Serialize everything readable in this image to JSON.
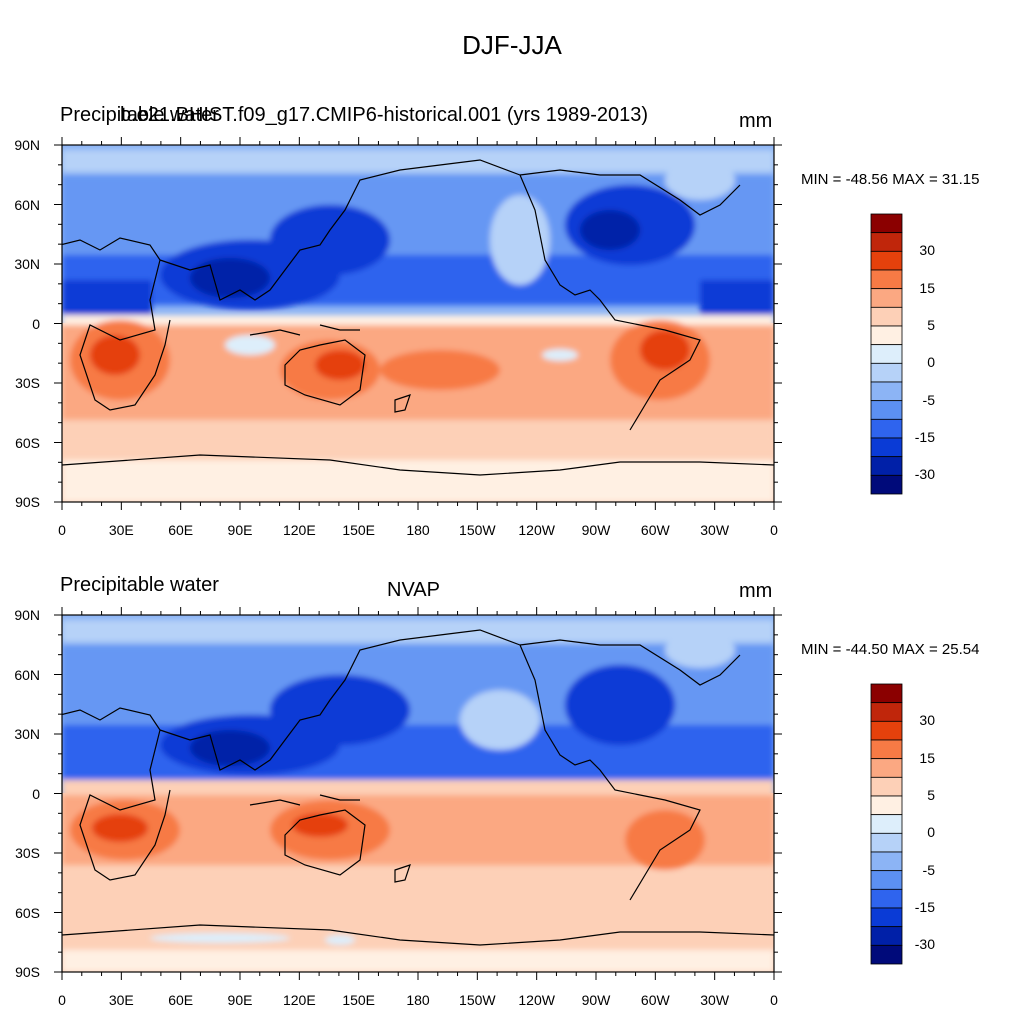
{
  "figure": {
    "title": "DJF-JJA"
  },
  "panels": [
    {
      "left_label": "Precipitable water",
      "center_label": "b.e21.BHIST.f09_g17.CMIP6-historical.001 (yrs 1989-2013)",
      "units": "mm",
      "stats_text": "MIN = -48.56 MAX =  31.15",
      "min": -48.56,
      "max": 31.15
    },
    {
      "left_label": "Precipitable water",
      "center_label": "NVAP",
      "units": "mm",
      "stats_text": "MIN = -44.50 MAX =  25.54",
      "min": -44.5,
      "max": 25.54
    }
  ],
  "axes": {
    "lon_tick_labels": [
      "0",
      "30E",
      "60E",
      "90E",
      "120E",
      "150E",
      "180",
      "150W",
      "120W",
      "90W",
      "60W",
      "30W",
      "0"
    ],
    "lat_tick_labels": [
      "90N",
      "60N",
      "30N",
      "0",
      "30S",
      "60S",
      "90S"
    ]
  },
  "colorbar": {
    "labels": [
      "30",
      "15",
      "5",
      "0",
      "-5",
      "-15",
      "-30"
    ],
    "colors": [
      "#8b0000",
      "#c0260b",
      "#e5410c",
      "#f77a45",
      "#fba882",
      "#fdd0b7",
      "#fff0e3",
      "#ddeefb",
      "#b6d2f8",
      "#8cb4f5",
      "#5c90f2",
      "#2f64ee",
      "#0a3bd6",
      "#0020a8",
      "#000a7a"
    ]
  },
  "colors": {
    "positive_max": "#b31f08",
    "neutral": "#fdf1e6",
    "negative_max": "#001f9e",
    "coastline": "#000000"
  }
}
